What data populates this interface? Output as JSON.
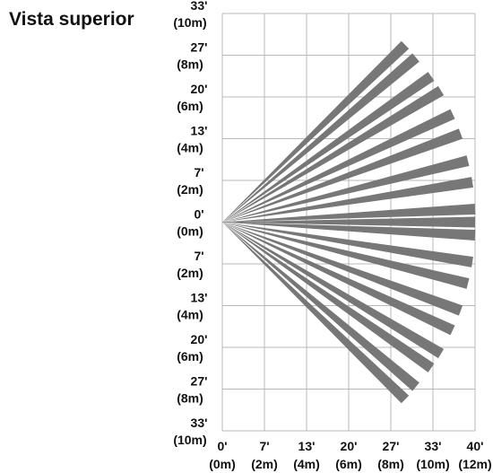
{
  "header": {
    "title": "Vista superior"
  },
  "y_axis": {
    "labels": [
      {
        "ft": "33'",
        "m": "(10m)"
      },
      {
        "ft": "27'",
        "m": "(8m)"
      },
      {
        "ft": "20'",
        "m": "(6m)"
      },
      {
        "ft": "13'",
        "m": "(4m)"
      },
      {
        "ft": "7'",
        "m": "(2m)"
      },
      {
        "ft": "0'",
        "m": "(0m)"
      },
      {
        "ft": "7'",
        "m": "(2m)"
      },
      {
        "ft": "13'",
        "m": "(4m)"
      },
      {
        "ft": "20'",
        "m": "(6m)"
      },
      {
        "ft": "27'",
        "m": "(8m)"
      },
      {
        "ft": "33'",
        "m": "(10m)"
      }
    ]
  },
  "x_axis": {
    "labels": [
      {
        "ft": "0'",
        "m": "(0m)"
      },
      {
        "ft": "7'",
        "m": "(2m)"
      },
      {
        "ft": "13'",
        "m": "(4m)"
      },
      {
        "ft": "20'",
        "m": "(6m)"
      },
      {
        "ft": "27'",
        "m": "(8m)"
      },
      {
        "ft": "33'",
        "m": "(10m)"
      },
      {
        "ft": "40'",
        "m": "(12m)"
      }
    ]
  }
}
